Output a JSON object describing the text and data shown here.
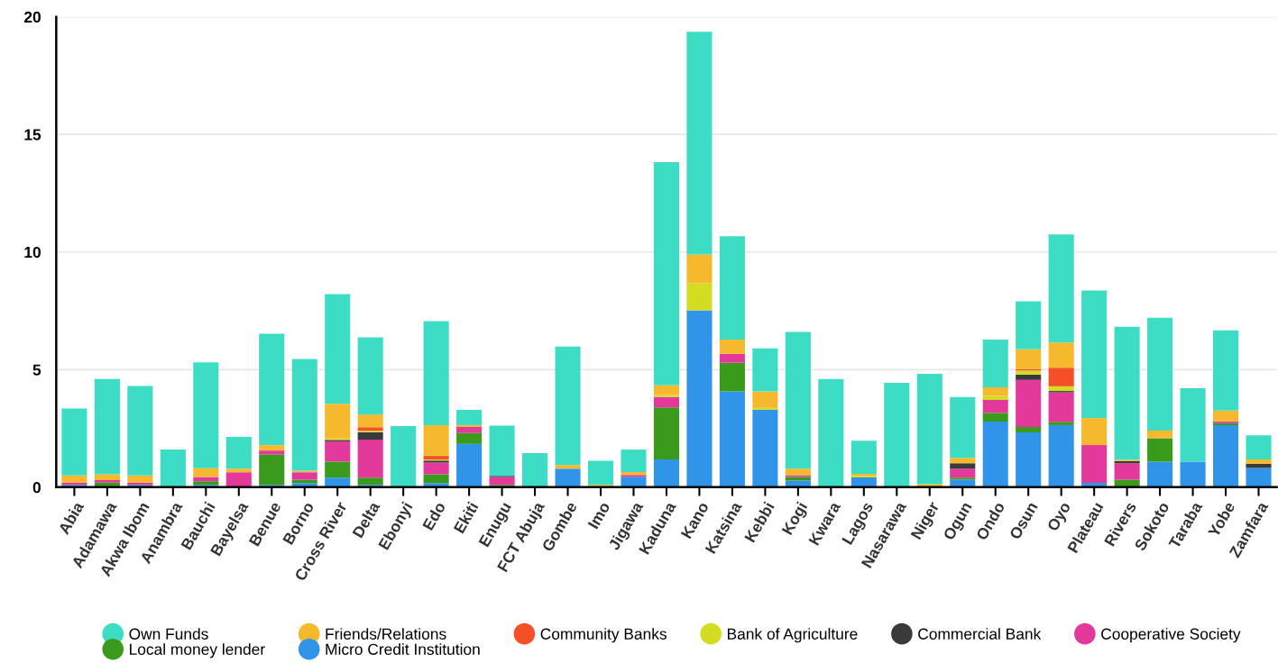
{
  "chart_data": {
    "type": "bar",
    "stacked": true,
    "categories": [
      "Abia",
      "Adamawa",
      "Akwa Ibom",
      "Anambra",
      "Bauchi",
      "Bayelsa",
      "Benue",
      "Borno",
      "Cross River",
      "Delta",
      "Ebonyi",
      "Edo",
      "Ekiti",
      "Enugu",
      "FCT Abuja",
      "Gombe",
      "Imo",
      "Jigawa",
      "Kaduna",
      "Kano",
      "Katsina",
      "Kebbi",
      "Kogi",
      "Kwara",
      "Lagos",
      "Nasarawa",
      "Niger",
      "Ogun",
      "Ondo",
      "Osun",
      "Oyo",
      "Plateau",
      "Rivers",
      "Sokoto",
      "Taraba",
      "Yobe",
      "Zamfara"
    ],
    "series": [
      {
        "name": "Micro Credit Institution",
        "color": "#3094e8",
        "values": [
          0.1,
          0,
          0.1,
          0,
          0.1,
          0,
          0.1,
          0.18,
          0.41,
          0.1,
          0,
          0.18,
          1.84,
          0,
          0,
          0.79,
          0,
          0.44,
          1.18,
          7.52,
          4.07,
          3.29,
          0.28,
          0,
          0.42,
          0,
          0,
          0.32,
          2.79,
          2.33,
          2.64,
          0.19,
          0,
          1.09,
          1.09,
          2.64,
          0.82
        ]
      },
      {
        "name": "Local money lender",
        "color": "#3a9a1c",
        "values": [
          0,
          0.2,
          0,
          0,
          0.15,
          0,
          1.29,
          0.14,
          0.68,
          0.31,
          0,
          0.37,
          0.46,
          0.1,
          0,
          0,
          0,
          0,
          2.21,
          0,
          1.22,
          0,
          0.15,
          0,
          0,
          0,
          0,
          0.09,
          0.37,
          0.23,
          0.14,
          0,
          0.32,
          0.99,
          0,
          0.08,
          0
        ]
      },
      {
        "name": "Cooperative Society",
        "color": "#e2399b",
        "values": [
          0.1,
          0.1,
          0.1,
          0,
          0.18,
          0.64,
          0.17,
          0.32,
          0.86,
          1.61,
          0,
          0.5,
          0.26,
          0.33,
          0,
          0,
          0,
          0.08,
          0.45,
          0,
          0.38,
          0,
          0.08,
          0,
          0,
          0,
          0,
          0.38,
          0.55,
          2.0,
          1.25,
          1.6,
          0.7,
          0,
          0,
          0.08,
          0
        ]
      },
      {
        "name": "Commercial Bank",
        "color": "#3a3a3a",
        "values": [
          0,
          0,
          0,
          0,
          0,
          0,
          0,
          0,
          0.06,
          0.32,
          0,
          0.08,
          0,
          0.05,
          0,
          0,
          0,
          0,
          0,
          0,
          0,
          0,
          0,
          0,
          0,
          0,
          0,
          0.23,
          0,
          0.23,
          0.06,
          0,
          0.09,
          0,
          0,
          0,
          0.18
        ]
      },
      {
        "name": "Bank of Agriculture",
        "color": "#d4dc22",
        "values": [
          0,
          0,
          0,
          0,
          0,
          0,
          0,
          0,
          0.06,
          0.06,
          0,
          0.05,
          0,
          0,
          0,
          0,
          0,
          0,
          0.08,
          1.15,
          0,
          0.08,
          0,
          0,
          0.06,
          0,
          0,
          0,
          0.17,
          0.17,
          0.2,
          0,
          0,
          0,
          0,
          0,
          0
        ]
      },
      {
        "name": "Community Banks",
        "color": "#f44f27",
        "values": [
          0,
          0,
          0,
          0,
          0,
          0,
          0,
          0,
          0,
          0.15,
          0,
          0.15,
          0,
          0,
          0,
          0,
          0,
          0,
          0,
          0,
          0,
          0,
          0,
          0,
          0,
          0,
          0,
          0,
          0,
          0.06,
          0.79,
          0,
          0,
          0,
          0,
          0,
          0
        ]
      },
      {
        "name": "Friends/Relations",
        "color": "#f6b92d",
        "values": [
          0.3,
          0.25,
          0.3,
          0,
          0.38,
          0.15,
          0.23,
          0.06,
          1.48,
          0.54,
          0,
          1.31,
          0.08,
          0,
          0,
          0.15,
          0.1,
          0.13,
          0.41,
          1.22,
          0.61,
          0.7,
          0.28,
          0,
          0.09,
          0,
          0.13,
          0.23,
          0.37,
          0.84,
          1.07,
          1.15,
          0.06,
          0.33,
          0,
          0.46,
          0.18
        ]
      },
      {
        "name": "Own Funds",
        "color": "#3ddcc4",
        "values": [
          2.85,
          4.05,
          3.8,
          1.6,
          4.5,
          1.35,
          4.73,
          4.75,
          4.66,
          3.28,
          2.6,
          4.42,
          0.65,
          2.14,
          1.45,
          5.04,
          1.02,
          0.95,
          9.49,
          9.47,
          4.39,
          1.83,
          5.81,
          4.6,
          1.41,
          4.44,
          4.69,
          2.58,
          2.03,
          2.04,
          4.6,
          5.42,
          5.65,
          4.79,
          3.12,
          3.41,
          1.03
        ]
      }
    ],
    "ylim": [
      0,
      20
    ],
    "yticks": [
      0,
      5,
      10,
      15,
      20
    ],
    "grid": "y",
    "legend": "bottom",
    "marker": "circle"
  }
}
